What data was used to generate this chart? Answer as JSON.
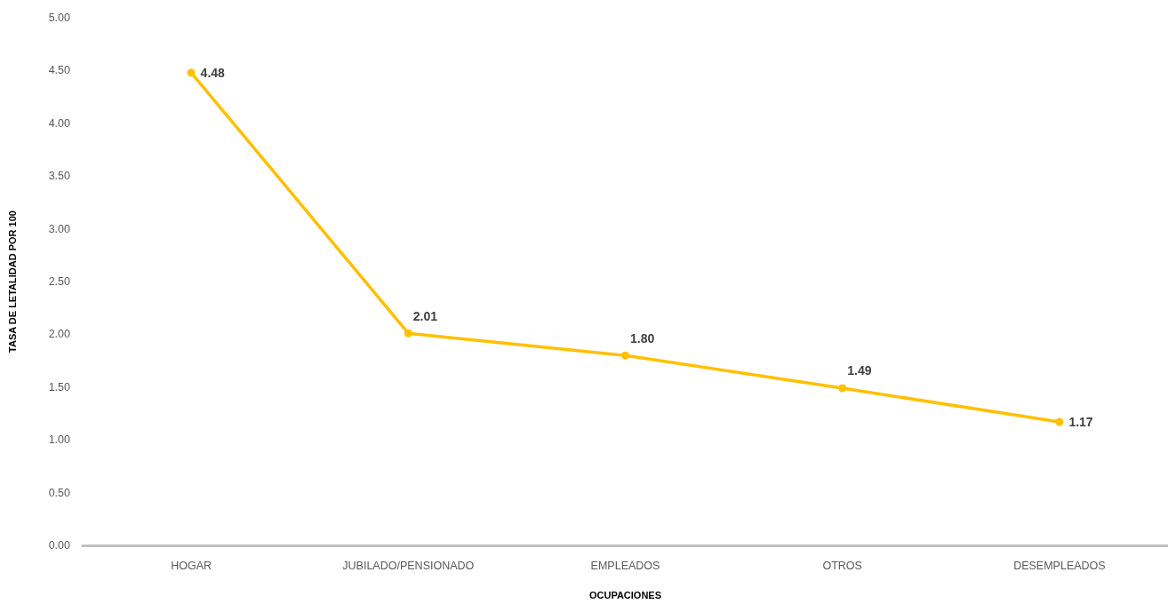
{
  "chart_data": {
    "type": "line",
    "xlabel": "OCUPACIONES",
    "ylabel": "TASA DE LETALIDAD POR 100",
    "categories": [
      "HOGAR",
      "JUBILADO/PENSIONADO",
      "EMPLEADOS",
      "OTROS",
      "DESEMPLEADOS"
    ],
    "series": [
      {
        "color": "#ffc000",
        "values": [
          4.48,
          2.01,
          1.8,
          1.49,
          1.17
        ],
        "value_labels": [
          "4.48",
          "2.01",
          "1.80",
          "1.49",
          "1.17"
        ]
      }
    ],
    "ylim": [
      0,
      5
    ],
    "yticks": [
      {
        "value": 0,
        "label": "0.00"
      },
      {
        "value": 0.5,
        "label": "0.50"
      },
      {
        "value": 1,
        "label": "1.00"
      },
      {
        "value": 1.5,
        "label": "1.50"
      },
      {
        "value": 2,
        "label": "2.00"
      },
      {
        "value": 2.5,
        "label": "2.50"
      },
      {
        "value": 3,
        "label": "3.00"
      },
      {
        "value": 3.5,
        "label": "3.50"
      },
      {
        "value": 4,
        "label": "4.00"
      },
      {
        "value": 4.5,
        "label": "4.50"
      },
      {
        "value": 5,
        "label": "5.00"
      }
    ],
    "grid": false,
    "marker": "circle",
    "line_style": "solid"
  }
}
